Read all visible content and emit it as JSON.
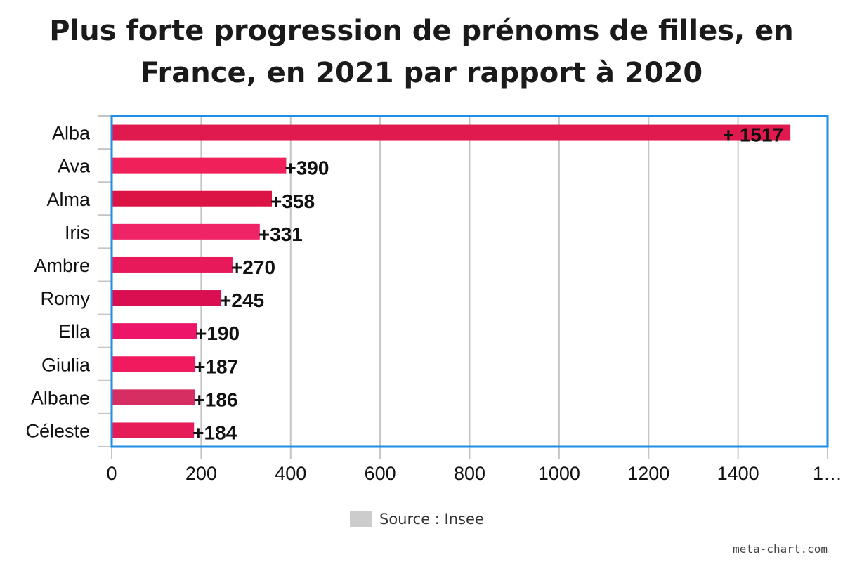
{
  "chart_data": {
    "type": "bar",
    "orientation": "horizontal",
    "title": "Plus forte progression de prénoms de filles, en France, en 2021 par rapport à 2020",
    "title_lines": [
      "Plus forte progression de prénoms de filles, en",
      "France, en 2021 par rapport à 2020"
    ],
    "categories": [
      "Alba",
      "Ava",
      "Alma",
      "Iris",
      "Ambre",
      "Romy",
      "Ella",
      "Giulia",
      "Albane",
      "Céleste"
    ],
    "values": [
      1517,
      390,
      358,
      331,
      270,
      245,
      190,
      187,
      186,
      184
    ],
    "data_labels": [
      "+ 1517",
      "+390",
      "+358",
      "+331",
      "+270",
      "+245",
      "+190",
      "+187",
      "+186",
      "+184"
    ],
    "bar_colors": [
      "#e0194f",
      "#f0215a",
      "#dc1446",
      "#ef2466",
      "#e8195a",
      "#d90f52",
      "#ec1567",
      "#f21a5f",
      "#d62e62",
      "#e51c58"
    ],
    "x_ticks": [
      "0",
      "200",
      "400",
      "600",
      "800",
      "1000",
      "1200",
      "1400",
      "1…"
    ],
    "x_tick_values": [
      0,
      200,
      400,
      600,
      800,
      1000,
      1200,
      1400,
      1600
    ],
    "xlim": [
      0,
      1600
    ],
    "grid": true,
    "legend": {
      "position": "bottom-center",
      "label": "Source : Insee",
      "color": "#cccccc"
    },
    "selection_color": "#1e8ee6"
  },
  "watermark": "meta-chart.com"
}
